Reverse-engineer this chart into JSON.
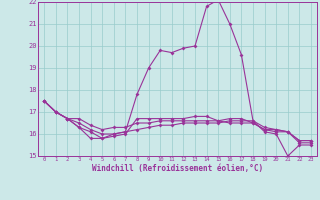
{
  "xlabel": "Windchill (Refroidissement éolien,°C)",
  "x_hours": [
    0,
    1,
    2,
    3,
    4,
    5,
    6,
    7,
    8,
    9,
    10,
    11,
    12,
    13,
    14,
    15,
    16,
    17,
    18,
    19,
    20,
    21,
    22,
    23
  ],
  "line1": [
    17.5,
    17.0,
    16.7,
    16.3,
    15.8,
    15.8,
    16.0,
    16.1,
    17.8,
    19.0,
    19.8,
    19.7,
    19.9,
    20.0,
    21.8,
    22.1,
    21.0,
    19.6,
    16.6,
    16.1,
    16.0,
    15.0,
    15.5,
    15.5
  ],
  "line2": [
    17.5,
    17.0,
    16.7,
    16.3,
    16.1,
    15.8,
    15.9,
    16.0,
    16.7,
    16.7,
    16.7,
    16.7,
    16.7,
    16.8,
    16.8,
    16.6,
    16.5,
    16.5,
    16.5,
    16.2,
    16.1,
    16.1,
    15.6,
    15.6
  ],
  "line3": [
    17.5,
    17.0,
    16.7,
    16.5,
    16.2,
    16.0,
    16.0,
    16.1,
    16.2,
    16.3,
    16.4,
    16.4,
    16.5,
    16.5,
    16.5,
    16.5,
    16.6,
    16.6,
    16.6,
    16.3,
    16.2,
    16.1,
    15.7,
    15.7
  ],
  "line4": [
    17.5,
    17.0,
    16.7,
    16.7,
    16.4,
    16.2,
    16.3,
    16.3,
    16.5,
    16.5,
    16.6,
    16.6,
    16.6,
    16.6,
    16.6,
    16.6,
    16.7,
    16.7,
    16.5,
    16.2,
    16.2,
    16.1,
    15.7,
    15.7
  ],
  "ylim": [
    15,
    22
  ],
  "yticks": [
    15,
    16,
    17,
    18,
    19,
    20,
    21,
    22
  ],
  "line_color": "#993399",
  "bg_color": "#cce8e8",
  "grid_color": "#99cccc"
}
